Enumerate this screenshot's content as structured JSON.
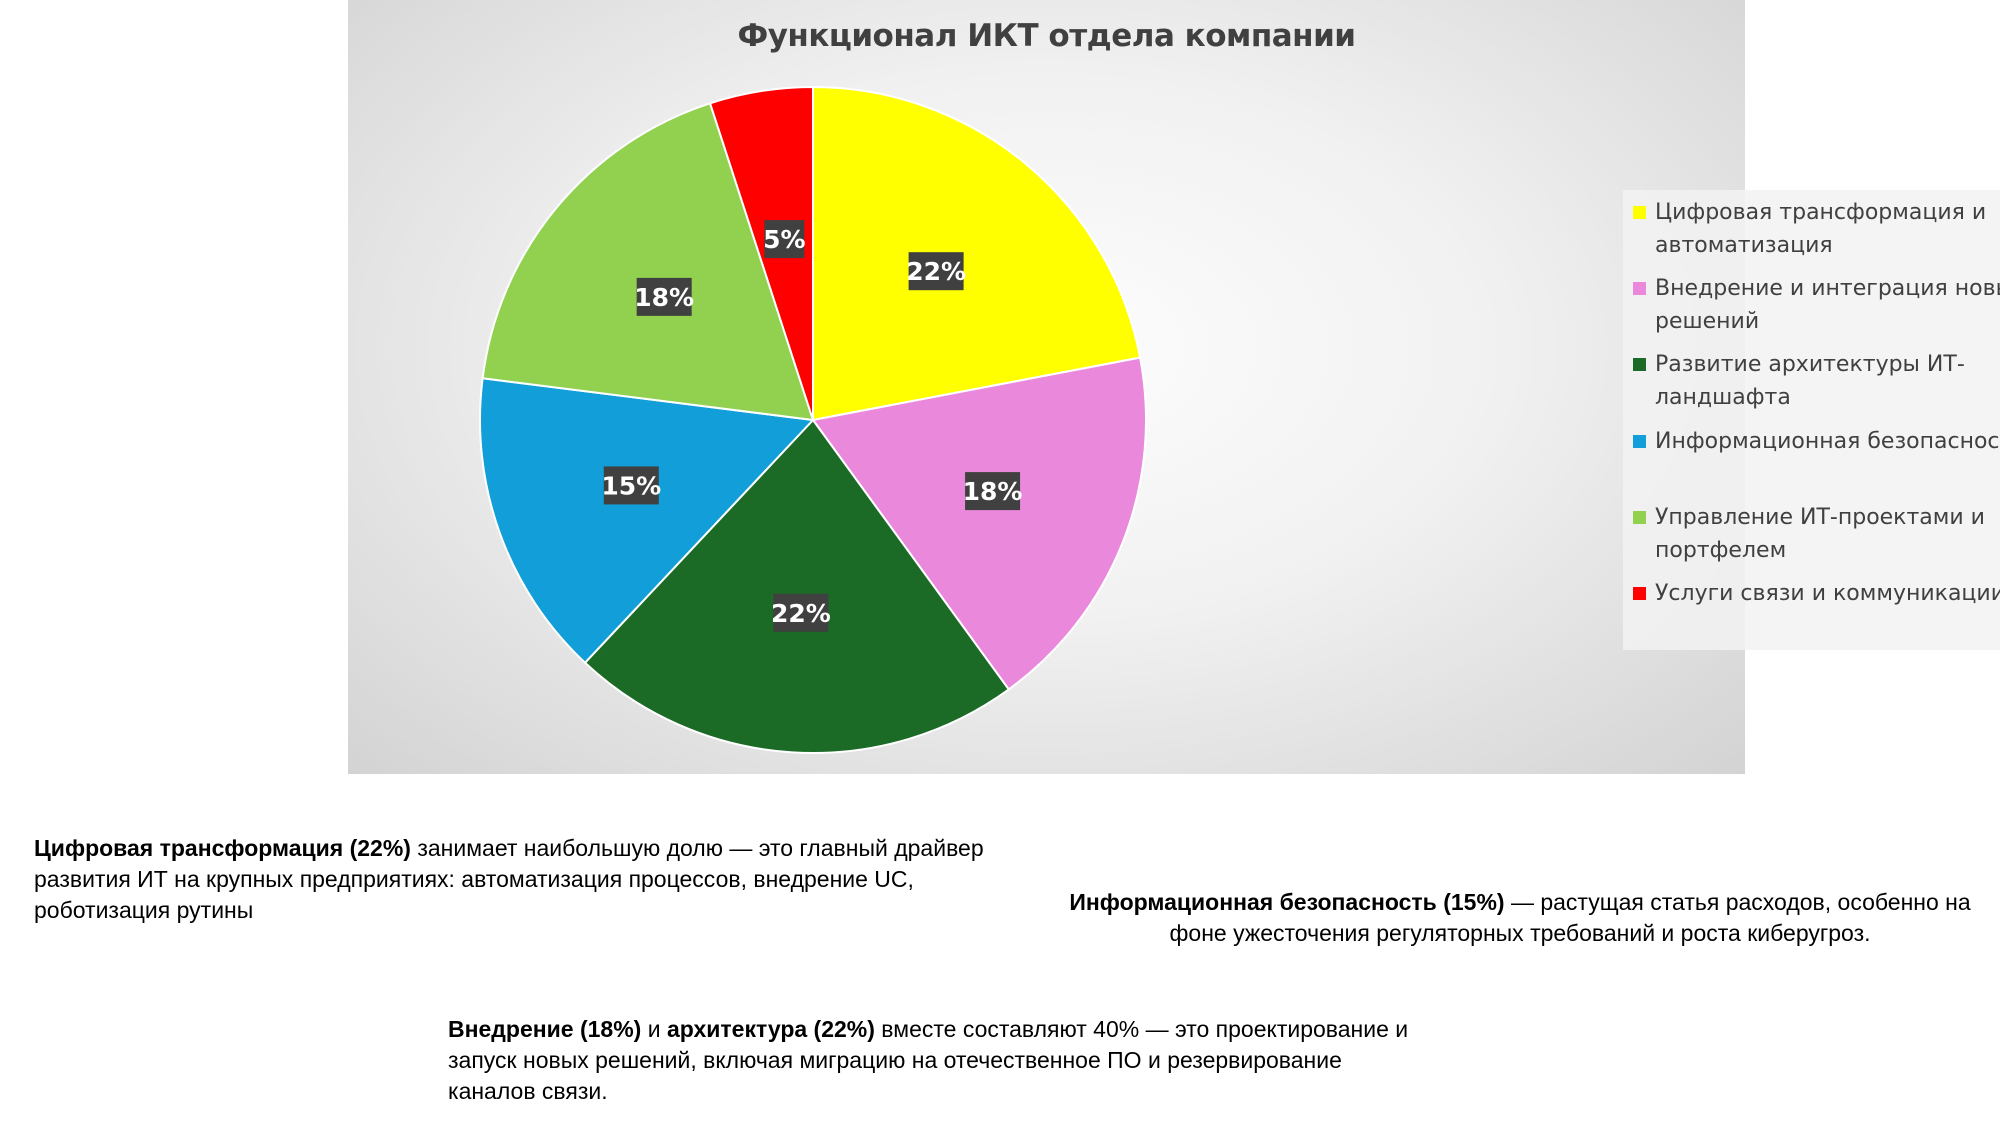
{
  "chart_data": {
    "type": "pie",
    "title": "Функционал ИКТ отдела компании",
    "categories": [
      "Цифровая трансформация и автоматизация",
      "Внедрение и интеграция новых решений",
      "Развитие архитектуры ИТ-ландшафта",
      "Информационная безопасность",
      "Управление ИТ-проектами и портфелем",
      "Услуги связи и коммуникации"
    ],
    "values": [
      22,
      18,
      22,
      15,
      18,
      5
    ],
    "data_labels": [
      "22%",
      "18%",
      "22%",
      "15%",
      "18%",
      "5%"
    ],
    "colors": [
      "#ffff00",
      "#ea88dc",
      "#1b6b27",
      "#129ed8",
      "#92d050",
      "#ff0000"
    ],
    "legend_placement": "right"
  },
  "notes": {
    "note1": {
      "bold1": "Цифровая трансформация (22%)",
      "text1": " занимает наибольшую долю — это главный драйвер развития ИТ на крупных предприятиях: автоматизация процессов, внедрение UC, роботизация рутины"
    },
    "note2": {
      "bold1": "Информационная безопасность (15%)",
      "text1": " — растущая статья расходов, особенно на фоне ужесточения регуляторных требований и роста киберугроз."
    },
    "note3": {
      "bold1": "Внедрение (18%)",
      "text1": " и ",
      "bold2": "архитектура (22%)",
      "text2": " вместе составляют 40% — это проектирование и запуск новых решений, включая миграцию на отечественное ПО и резервирование каналов связи."
    }
  }
}
